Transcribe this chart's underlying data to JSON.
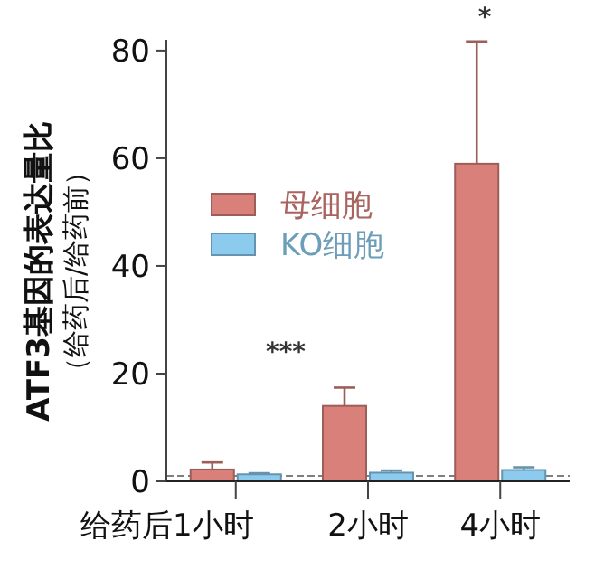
{
  "chart_data": {
    "type": "bar",
    "ylabel": "ATF3基因的表达量比（给药后/给药前）",
    "categories": [
      "给药后1小时",
      "2小时",
      "4小时"
    ],
    "series": [
      {
        "name": "母细胞",
        "color": "#d9807a",
        "values": [
          2.2,
          14,
          59
        ],
        "errors": [
          [
            2.2,
            3.5
          ],
          [
            14,
            17.4
          ],
          [
            59,
            81.7
          ]
        ]
      },
      {
        "name": "KO细胞",
        "color": "#8ccbee",
        "values": [
          1.3,
          1.6,
          2.1
        ],
        "errors": [
          [
            1.3,
            1.5
          ],
          [
            1.6,
            2.0
          ],
          [
            2.1,
            2.6
          ]
        ]
      }
    ],
    "ylim": [
      0,
      82
    ],
    "yticks": [
      0,
      20,
      40,
      60,
      80
    ],
    "legend": "top left",
    "grid": false,
    "ref_lines": [
      {
        "axis": "y",
        "value": 1,
        "line_style": "dashed",
        "color": "#555555"
      }
    ],
    "annotations": [
      "***",
      "*"
    ]
  }
}
